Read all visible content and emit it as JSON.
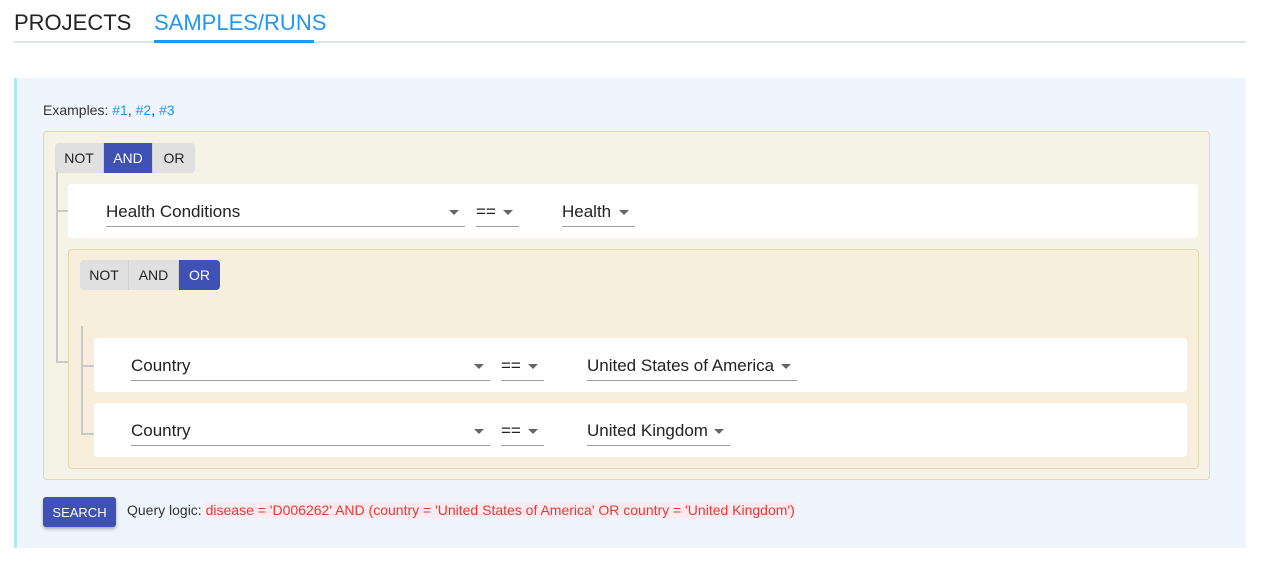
{
  "tabs": [
    {
      "label": "PROJECTS",
      "active": false
    },
    {
      "label": "SAMPLES/RUNS",
      "active": true
    }
  ],
  "examples": {
    "label": "Examples:",
    "links": [
      "#1",
      "#2",
      "#3"
    ]
  },
  "outer_group": {
    "combinators": [
      "NOT",
      "AND",
      "OR"
    ],
    "selected": "AND",
    "rule": {
      "field": "Health Conditions",
      "operator": "==",
      "value": "Health"
    }
  },
  "inner_group": {
    "combinators": [
      "NOT",
      "AND",
      "OR"
    ],
    "selected": "OR",
    "rules": [
      {
        "field": "Country",
        "operator": "==",
        "value": "United States of America"
      },
      {
        "field": "Country",
        "operator": "==",
        "value": "United Kingdom"
      }
    ]
  },
  "search_label": "SEARCH",
  "query": {
    "label": "Query logic:",
    "text": "disease = 'D006262' AND (country = 'United States of America' OR country = 'United Kingdom')"
  },
  "colors": {
    "accent": "#2196f3",
    "primary": "#3f51b5",
    "query": "#e53935"
  }
}
